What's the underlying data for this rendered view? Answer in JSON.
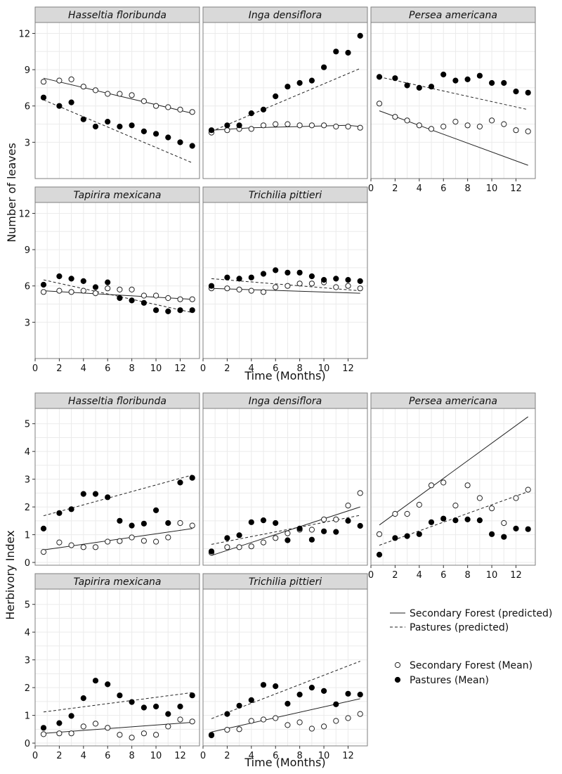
{
  "chart_data": [
    {
      "type": "scatter",
      "title": "",
      "xlabel": "Time (Months)",
      "ylabel": "Number of leaves",
      "xlim": [
        0,
        13.6
      ],
      "ylim": [
        0,
        12.9
      ],
      "x_ticks": [
        0,
        2,
        4,
        6,
        8,
        10,
        12
      ],
      "y_ticks": [
        3,
        6,
        9,
        12
      ],
      "grid": true,
      "panels": [
        {
          "species": "Hasseltia floribunda",
          "x": [
            0.7,
            2,
            3,
            4,
            5,
            6,
            7,
            8,
            9,
            10,
            11,
            12,
            13
          ],
          "series": [
            {
              "name": "Secondary Forest (Mean)",
              "values": [
                8.0,
                8.1,
                8.2,
                7.6,
                7.3,
                7.0,
                7.0,
                6.9,
                6.4,
                6.0,
                5.9,
                5.7,
                5.5
              ]
            },
            {
              "name": "Pastures (Mean)",
              "values": [
                6.7,
                6.0,
                6.3,
                4.9,
                4.3,
                4.7,
                4.3,
                4.4,
                3.9,
                3.7,
                3.4,
                3.0,
                2.7
              ]
            },
            {
              "name": "Secondary Forest (predicted)",
              "x": [
                0.7,
                13
              ],
              "values": [
                8.3,
                5.4
              ]
            },
            {
              "name": "Pastures (predicted)",
              "x": [
                0.7,
                13
              ],
              "values": [
                6.5,
                1.3
              ]
            }
          ]
        },
        {
          "species": "Inga densiflora",
          "x": [
            0.7,
            2,
            3,
            4,
            5,
            6,
            7,
            8,
            9,
            10,
            11,
            12,
            13
          ],
          "series": [
            {
              "name": "Secondary Forest (Mean)",
              "values": [
                3.8,
                4.0,
                4.1,
                4.1,
                4.4,
                4.5,
                4.5,
                4.4,
                4.4,
                4.4,
                4.3,
                4.3,
                4.2
              ]
            },
            {
              "name": "Pastures (Mean)",
              "values": [
                4.0,
                4.4,
                4.4,
                5.4,
                5.7,
                6.8,
                7.6,
                7.9,
                8.1,
                9.2,
                10.5,
                10.4,
                11.8
              ]
            },
            {
              "name": "Secondary Forest (predicted)",
              "x": [
                0.7,
                4,
                8,
                10,
                12,
                13
              ],
              "values": [
                4.0,
                4.2,
                4.3,
                4.35,
                4.4,
                4.3
              ]
            },
            {
              "name": "Pastures (predicted)",
              "x": [
                0.7,
                13
              ],
              "values": [
                3.9,
                9.1
              ]
            }
          ]
        },
        {
          "species": "Persea americana",
          "x": [
            0.7,
            2,
            3,
            4,
            5,
            6,
            7,
            8,
            9,
            10,
            11,
            12,
            13
          ],
          "series": [
            {
              "name": "Secondary Forest (Mean)",
              "values": [
                6.2,
                5.1,
                4.8,
                4.4,
                4.1,
                4.3,
                4.7,
                4.4,
                4.3,
                4.8,
                4.5,
                4.0,
                3.9
              ]
            },
            {
              "name": "Pastures (Mean)",
              "values": [
                8.4,
                8.3,
                7.7,
                7.5,
                7.6,
                8.6,
                8.1,
                8.2,
                8.5,
                7.9,
                7.9,
                7.2,
                7.1
              ]
            },
            {
              "name": "Secondary Forest (predicted)",
              "x": [
                0.7,
                13
              ],
              "values": [
                5.6,
                1.1
              ]
            },
            {
              "name": "Pastures (predicted)",
              "x": [
                0.7,
                13
              ],
              "values": [
                8.4,
                5.7
              ]
            }
          ]
        },
        {
          "species": "Tapirira mexicana",
          "x": [
            0.7,
            2,
            3,
            4,
            5,
            6,
            7,
            8,
            9,
            10,
            11,
            12,
            13
          ],
          "series": [
            {
              "name": "Secondary Forest (Mean)",
              "values": [
                5.5,
                5.6,
                5.5,
                5.6,
                5.4,
                5.8,
                5.7,
                5.7,
                5.2,
                5.2,
                5.0,
                4.9,
                4.9
              ]
            },
            {
              "name": "Pastures (Mean)",
              "values": [
                6.1,
                6.8,
                6.6,
                6.4,
                5.9,
                6.3,
                5.0,
                4.8,
                4.6,
                4.0,
                3.9,
                4.0,
                4.0
              ]
            },
            {
              "name": "Secondary Forest (predicted)",
              "x": [
                0.7,
                13
              ],
              "values": [
                5.6,
                4.9
              ]
            },
            {
              "name": "Pastures (predicted)",
              "x": [
                0.7,
                13
              ],
              "values": [
                6.5,
                3.8
              ]
            }
          ]
        },
        {
          "species": "Trichilia pittieri",
          "x": [
            0.7,
            2,
            3,
            4,
            5,
            6,
            7,
            8,
            9,
            10,
            11,
            12,
            13
          ],
          "series": [
            {
              "name": "Secondary Forest (Mean)",
              "values": [
                5.8,
                5.8,
                5.7,
                5.6,
                5.5,
                5.9,
                6.0,
                6.2,
                6.2,
                6.3,
                5.9,
                6.0,
                5.8
              ]
            },
            {
              "name": "Pastures (Mean)",
              "values": [
                6.0,
                6.7,
                6.6,
                6.7,
                7.0,
                7.3,
                7.1,
                7.1,
                6.8,
                6.5,
                6.6,
                6.5,
                6.4
              ]
            },
            {
              "name": "Secondary Forest (predicted)",
              "x": [
                0.7,
                13
              ],
              "values": [
                5.8,
                5.4
              ]
            },
            {
              "name": "Pastures (predicted)",
              "x": [
                0.7,
                13
              ],
              "values": [
                6.6,
                5.6
              ]
            }
          ]
        }
      ]
    },
    {
      "type": "scatter",
      "title": "",
      "xlabel": "Time (Months)",
      "ylabel": "Herbivory Index",
      "xlim": [
        0,
        13.6
      ],
      "ylim": [
        -0.1,
        5.55
      ],
      "x_ticks": [
        0,
        2,
        4,
        6,
        8,
        10,
        12
      ],
      "y_ticks": [
        0,
        1,
        2,
        3,
        4,
        5
      ],
      "grid": true,
      "panels": [
        {
          "species": "Hasseltia floribunda",
          "x": [
            0.7,
            2,
            3,
            4,
            5,
            6,
            7,
            8,
            9,
            10,
            11,
            12,
            13
          ],
          "series": [
            {
              "name": "Secondary Forest (Mean)",
              "values": [
                0.38,
                0.72,
                0.62,
                0.55,
                0.55,
                0.75,
                0.77,
                0.9,
                0.78,
                0.75,
                0.9,
                1.42,
                1.33
              ]
            },
            {
              "name": "Pastures (Mean)",
              "values": [
                1.22,
                1.78,
                1.92,
                2.47,
                2.47,
                2.35,
                1.5,
                1.33,
                1.4,
                1.88,
                1.42,
                2.88,
                3.05
              ]
            },
            {
              "name": "Secondary Forest (predicted)",
              "x": [
                0.7,
                13
              ],
              "values": [
                0.45,
                1.22
              ]
            },
            {
              "name": "Pastures (predicted)",
              "x": [
                0.7,
                13
              ],
              "values": [
                1.68,
                3.15
              ]
            }
          ]
        },
        {
          "species": "Inga densiflora",
          "x": [
            0.7,
            2,
            3,
            4,
            5,
            6,
            7,
            8,
            9,
            10,
            11,
            12,
            13
          ],
          "series": [
            {
              "name": "Secondary Forest (Mean)",
              "values": [
                0.35,
                0.55,
                0.55,
                0.58,
                0.72,
                0.88,
                1.05,
                1.18,
                1.18,
                1.55,
                1.55,
                2.05,
                2.5
              ]
            },
            {
              "name": "Pastures (Mean)",
              "values": [
                0.4,
                0.88,
                0.98,
                1.45,
                1.52,
                1.42,
                0.8,
                1.22,
                0.82,
                1.12,
                1.1,
                1.5,
                1.32
              ]
            },
            {
              "name": "Secondary Forest (predicted)",
              "x": [
                0.7,
                13
              ],
              "values": [
                0.25,
                2.0
              ]
            },
            {
              "name": "Pastures (predicted)",
              "x": [
                0.7,
                13
              ],
              "values": [
                0.65,
                1.7
              ]
            }
          ]
        },
        {
          "species": "Persea americana",
          "x": [
            0.7,
            2,
            3,
            4,
            5,
            6,
            7,
            8,
            9,
            10,
            11,
            12,
            13
          ],
          "series": [
            {
              "name": "Secondary Forest (Mean)",
              "values": [
                1.02,
                1.75,
                1.75,
                2.08,
                2.78,
                2.88,
                2.05,
                2.78,
                2.32,
                1.95,
                1.42,
                2.32,
                2.62
              ]
            },
            {
              "name": "Pastures (Mean)",
              "values": [
                0.28,
                0.88,
                0.95,
                1.02,
                1.45,
                1.58,
                1.52,
                1.55,
                1.52,
                1.02,
                0.92,
                1.22,
                1.2
              ]
            },
            {
              "name": "Secondary Forest (predicted)",
              "x": [
                0.7,
                13
              ],
              "values": [
                1.35,
                5.25
              ]
            },
            {
              "name": "Pastures (predicted)",
              "x": [
                0.7,
                13
              ],
              "values": [
                0.62,
                2.55
              ]
            }
          ]
        },
        {
          "species": "Tapirira mexicana",
          "x": [
            0.7,
            2,
            3,
            4,
            5,
            6,
            7,
            8,
            9,
            10,
            11,
            12,
            13
          ],
          "series": [
            {
              "name": "Secondary Forest (Mean)",
              "values": [
                0.32,
                0.35,
                0.35,
                0.6,
                0.7,
                0.55,
                0.3,
                0.2,
                0.35,
                0.3,
                0.6,
                0.85,
                0.78
              ]
            },
            {
              "name": "Pastures (Mean)",
              "values": [
                0.55,
                0.72,
                0.98,
                1.62,
                2.25,
                2.12,
                1.72,
                1.48,
                1.28,
                1.32,
                1.05,
                1.32,
                1.72
              ]
            },
            {
              "name": "Secondary Forest (predicted)",
              "x": [
                0.7,
                13
              ],
              "values": [
                0.35,
                0.75
              ]
            },
            {
              "name": "Pastures (predicted)",
              "x": [
                0.7,
                13
              ],
              "values": [
                1.12,
                1.82
              ]
            }
          ]
        },
        {
          "species": "Trichilia pittieri",
          "x": [
            0.7,
            2,
            3,
            4,
            5,
            6,
            7,
            8,
            9,
            10,
            11,
            12,
            13
          ],
          "series": [
            {
              "name": "Secondary Forest (Mean)",
              "values": [
                0.3,
                0.48,
                0.5,
                0.8,
                0.85,
                0.9,
                0.65,
                0.75,
                0.52,
                0.6,
                0.8,
                0.9,
                1.05
              ]
            },
            {
              "name": "Pastures (Mean)",
              "values": [
                0.28,
                1.05,
                1.35,
                1.55,
                2.1,
                2.05,
                1.42,
                1.75,
                2.0,
                1.88,
                1.4,
                1.78,
                1.75
              ]
            },
            {
              "name": "Secondary Forest (predicted)",
              "x": [
                0.7,
                13
              ],
              "values": [
                0.4,
                1.6
              ]
            },
            {
              "name": "Pastures (predicted)",
              "x": [
                0.7,
                13
              ],
              "values": [
                0.88,
                2.95
              ]
            }
          ]
        }
      ]
    }
  ],
  "legend": {
    "lines": [
      {
        "label": "Secondary Forest (predicted)",
        "style": "solid"
      },
      {
        "label": "Pastures (predicted)",
        "style": "dashed"
      }
    ],
    "points": [
      {
        "label": "Secondary Forest (Mean)",
        "fill": "open"
      },
      {
        "label": "Pastures (Mean)",
        "fill": "filled"
      }
    ]
  },
  "colors": {
    "strip_bg": "#d9d9d9",
    "panel_border": "#7f7f7f",
    "grid": "#ebebeb",
    "ink": "#000000"
  }
}
